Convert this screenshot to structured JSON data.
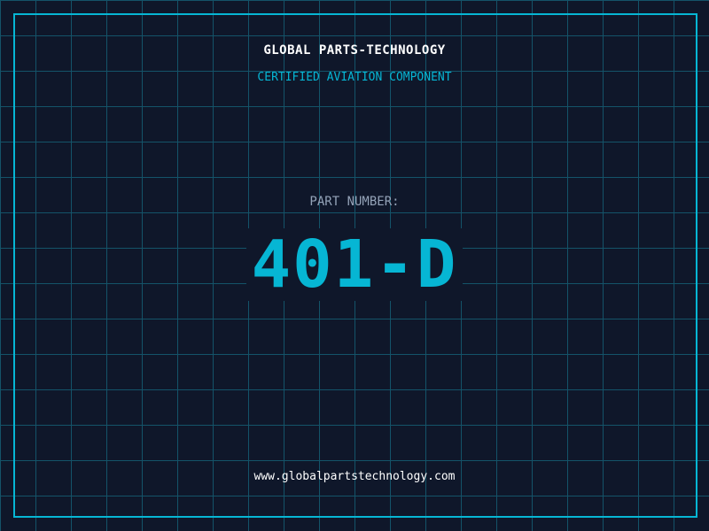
{
  "header": {
    "brand": "GLOBAL PARTS-TECHNOLOGY",
    "subtitle": "CERTIFIED AVIATION COMPONENT"
  },
  "part": {
    "label": "PART NUMBER:",
    "number": "401-D"
  },
  "footer": {
    "url": "www.globalpartstechnology.com"
  },
  "colors": {
    "background": "#0f172a",
    "accent": "#06b6d4",
    "grid": "#155e75",
    "label": "#94a3b8"
  }
}
